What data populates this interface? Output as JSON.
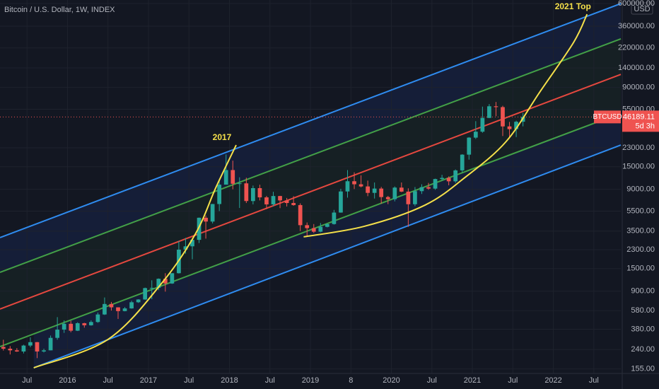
{
  "chart_data": {
    "type": "candlestick",
    "title": "Bitcoin / U.S. Dollar, 1W, INDEX",
    "currency": "USD",
    "log_scale": true,
    "up_color": "#26a69a",
    "down_color": "#ef5350",
    "ylim": [
      140,
      650000
    ],
    "yticks": [
      {
        "value": 600000,
        "label": "600000.00"
      },
      {
        "value": 360000,
        "label": "360000.00"
      },
      {
        "value": 220000,
        "label": "220000.00"
      },
      {
        "value": 140000,
        "label": "140000.00"
      },
      {
        "value": 90000,
        "label": "90000.00"
      },
      {
        "value": 55000,
        "label": "55000.00"
      },
      {
        "value": 23000,
        "label": "23000.00"
      },
      {
        "value": 15000,
        "label": "15000.00"
      },
      {
        "value": 9000,
        "label": "9000.00"
      },
      {
        "value": 5500,
        "label": "5500.00"
      },
      {
        "value": 3500,
        "label": "3500.00"
      },
      {
        "value": 2300,
        "label": "2300.00"
      },
      {
        "value": 1500,
        "label": "1500.00"
      },
      {
        "value": 900,
        "label": "900.00"
      },
      {
        "value": 580,
        "label": "580.00"
      },
      {
        "value": 380,
        "label": "380.00"
      },
      {
        "value": 240,
        "label": "240.00"
      },
      {
        "value": 155,
        "label": "155.00"
      }
    ],
    "xlim": [
      "2015-03",
      "2022-11"
    ],
    "xticks": [
      {
        "value": "2015-07",
        "label": "Jul"
      },
      {
        "value": "2016-01",
        "label": "2016"
      },
      {
        "value": "2016-07",
        "label": "Jul"
      },
      {
        "value": "2017-01",
        "label": "2017"
      },
      {
        "value": "2017-07",
        "label": "Jul"
      },
      {
        "value": "2018-01",
        "label": "2018"
      },
      {
        "value": "2018-07",
        "label": "Jul"
      },
      {
        "value": "2019-01",
        "label": "2019"
      },
      {
        "value": "2019-07",
        "label": "8"
      },
      {
        "value": "2020-01",
        "label": "2020"
      },
      {
        "value": "2020-07",
        "label": "Jul"
      },
      {
        "value": "2021-01",
        "label": "2021"
      },
      {
        "value": "2021-07",
        "label": "Jul"
      },
      {
        "value": "2022-01",
        "label": "2022"
      },
      {
        "value": "2022-07",
        "label": "Jul"
      }
    ],
    "x": [
      "2015-03",
      "2015-04",
      "2015-05",
      "2015-06",
      "2015-07",
      "2015-08",
      "2015-09",
      "2015-10",
      "2015-11",
      "2015-12",
      "2016-01",
      "2016-02",
      "2016-03",
      "2016-04",
      "2016-05",
      "2016-06",
      "2016-07",
      "2016-08",
      "2016-09",
      "2016-10",
      "2016-11",
      "2016-12",
      "2017-01",
      "2017-02",
      "2017-03",
      "2017-04",
      "2017-05",
      "2017-06",
      "2017-07",
      "2017-08",
      "2017-09",
      "2017-10",
      "2017-11",
      "2017-12",
      "2018-01",
      "2018-02",
      "2018-03",
      "2018-04",
      "2018-05",
      "2018-06",
      "2018-07",
      "2018-08",
      "2018-09",
      "2018-10",
      "2018-11",
      "2018-12",
      "2019-01",
      "2019-02",
      "2019-03",
      "2019-04",
      "2019-05",
      "2019-06",
      "2019-07",
      "2019-08",
      "2019-09",
      "2019-10",
      "2019-11",
      "2019-12",
      "2020-01",
      "2020-02",
      "2020-03",
      "2020-04",
      "2020-05",
      "2020-06",
      "2020-07",
      "2020-08",
      "2020-09",
      "2020-10",
      "2020-11",
      "2020-12",
      "2021-01",
      "2021-02",
      "2021-03",
      "2021-04",
      "2021-05",
      "2021-06",
      "2021-07",
      "2021-08"
    ],
    "open": [
      255,
      245,
      236,
      230,
      263,
      284,
      230,
      236,
      313,
      377,
      430,
      368,
      436,
      416,
      448,
      531,
      673,
      624,
      573,
      609,
      700,
      745,
      964,
      970,
      1190,
      1070,
      1350,
      2300,
      2480,
      2870,
      4730,
      4340,
      6450,
      10000,
      13900,
      10200,
      10300,
      6900,
      9240,
      7500,
      6400,
      7730,
      7000,
      6600,
      6300,
      4000,
      3740,
      3450,
      3850,
      4100,
      5320,
      8570,
      10800,
      10080,
      9600,
      8300,
      9150,
      7550,
      7190,
      9350,
      8540,
      6420,
      8630,
      9450,
      9140,
      11350,
      11650,
      10780,
      13800,
      19700,
      28950,
      33100,
      45200,
      58800,
      57700,
      37300,
      35050,
      41450
    ],
    "high": [
      300,
      260,
      248,
      268,
      317,
      285,
      245,
      330,
      500,
      465,
      460,
      445,
      440,
      465,
      555,
      780,
      705,
      625,
      628,
      725,
      750,
      975,
      1150,
      1200,
      1350,
      1350,
      2800,
      3000,
      2950,
      4750,
      4980,
      6470,
      11400,
      19800,
      17200,
      11800,
      11700,
      9800,
      9990,
      7750,
      8500,
      7760,
      7400,
      7700,
      6550,
      4250,
      4100,
      4200,
      4150,
      5650,
      9100,
      13900,
      13200,
      12350,
      10950,
      10500,
      9500,
      7750,
      9600,
      10500,
      9200,
      9470,
      10080,
      10400,
      11450,
      12480,
      12050,
      14100,
      19900,
      29300,
      42000,
      58350,
      61800,
      64850,
      59500,
      41300,
      42450,
      50500
    ],
    "low": [
      235,
      215,
      228,
      220,
      253,
      198,
      225,
      236,
      300,
      350,
      355,
      365,
      394,
      412,
      440,
      525,
      580,
      480,
      570,
      605,
      690,
      740,
      750,
      920,
      890,
      1060,
      1340,
      2100,
      1850,
      2670,
      2950,
      4160,
      5500,
      10000,
      9000,
      5900,
      6600,
      6400,
      7000,
      5750,
      6100,
      5880,
      6100,
      6200,
      3500,
      3130,
      3350,
      3400,
      3800,
      4050,
      5300,
      7450,
      9050,
      9400,
      7700,
      7300,
      6500,
      6430,
      6850,
      8450,
      3850,
      6150,
      8100,
      8900,
      8900,
      10950,
      9850,
      10400,
      13200,
      17600,
      28100,
      32300,
      44950,
      47050,
      30000,
      28800,
      29300,
      37350
    ],
    "close": [
      245,
      236,
      230,
      263,
      284,
      230,
      236,
      313,
      377,
      430,
      368,
      436,
      416,
      448,
      531,
      673,
      624,
      573,
      609,
      700,
      745,
      964,
      970,
      1190,
      1070,
      1350,
      2300,
      2480,
      2870,
      4730,
      4340,
      6450,
      10000,
      13900,
      10200,
      10300,
      6900,
      9240,
      7500,
      6400,
      7730,
      7000,
      6600,
      6300,
      4000,
      3740,
      3450,
      3850,
      4100,
      5320,
      8570,
      10800,
      10080,
      9600,
      8300,
      9150,
      7550,
      7190,
      9350,
      8540,
      6420,
      8630,
      9450,
      9140,
      11350,
      11650,
      10780,
      13800,
      19700,
      28950,
      33100,
      45200,
      58800,
      57700,
      37300,
      35050,
      41450,
      46189.11
    ],
    "last_price": 46189.11,
    "symbol": "BTCUSD",
    "countdown": "5d 3h",
    "channel_lines": [
      {
        "color": "#2f8cf0",
        "points": [
          [
            "2015-03",
            3020
          ],
          [
            "2022-11",
            600000
          ]
        ]
      },
      {
        "color": "#43a047",
        "points": [
          [
            "2015-03",
            1377
          ],
          [
            "2022-11",
            270000
          ]
        ]
      },
      {
        "color": "#e5483f",
        "points": [
          [
            "2015-03",
            600
          ],
          [
            "2022-11",
            121000
          ]
        ]
      },
      {
        "color": "#43a047",
        "points": [
          [
            "2015-03",
            257
          ],
          [
            "2022-11",
            50300
          ]
        ]
      },
      {
        "color": "#2f8cf0",
        "points": [
          [
            "2015-08",
            159
          ],
          [
            "2022-11",
            24500
          ]
        ]
      }
    ],
    "curves": [
      {
        "color": "#f5e04a",
        "label": "2017",
        "points": [
          [
            "2015-08",
            159
          ],
          [
            "2016-07",
            302
          ],
          [
            "2017-03",
            1084
          ],
          [
            "2017-08",
            3320
          ],
          [
            "2017-11",
            9400
          ],
          [
            "2018-02",
            24500
          ]
        ]
      },
      {
        "color": "#f5e04a",
        "label": "2021 Top",
        "points": [
          [
            "2018-12",
            3070
          ],
          [
            "2019-09",
            3900
          ],
          [
            "2020-06",
            6300
          ],
          [
            "2020-12",
            11900
          ],
          [
            "2021-06",
            26500
          ],
          [
            "2021-11",
            81300
          ],
          [
            "2022-04",
            249000
          ],
          [
            "2022-06",
            472000
          ]
        ]
      }
    ]
  }
}
